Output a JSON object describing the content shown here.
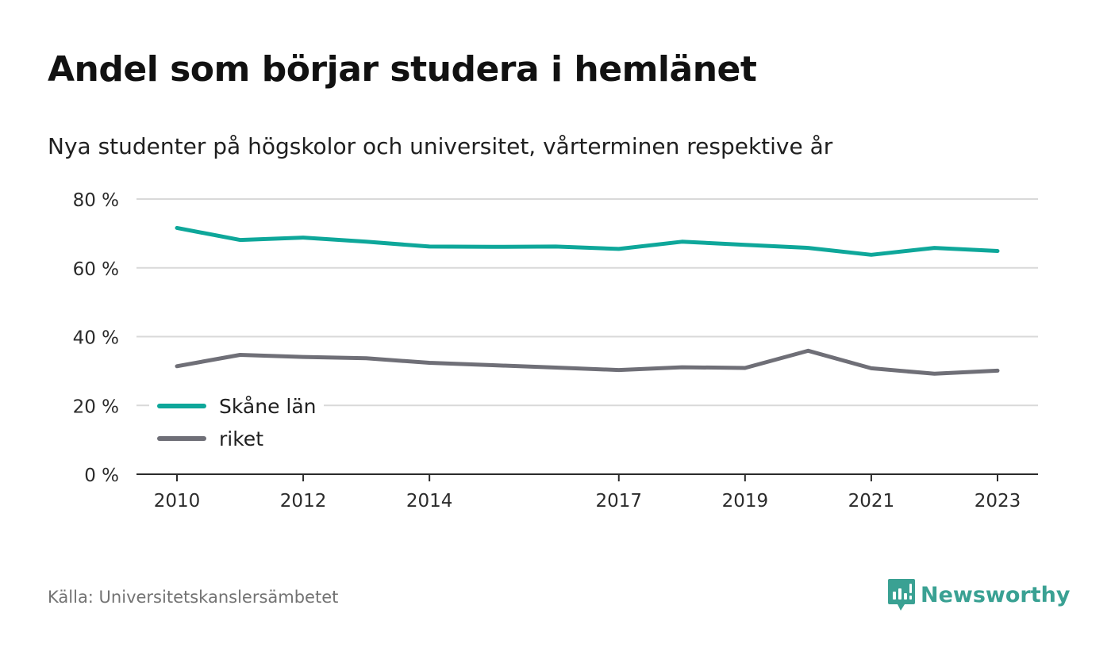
{
  "title": "Andel som börjar studera i hemlänet",
  "subtitle": "Nya studenter på högskolor och universitet, vårterminen respektive år",
  "source": "Källa: Universitetskanslersämbetet",
  "brand": {
    "name": "Newsworthy",
    "icon": "newsworthy-logo-icon",
    "color": "#3aa193"
  },
  "chart_data": {
    "type": "line",
    "title": "Andel som börjar studera i hemlänet",
    "subtitle": "Nya studenter på högskolor och universitet, vårterminen respektive år",
    "x": [
      2010,
      2011,
      2012,
      2013,
      2014,
      2015,
      2016,
      2017,
      2018,
      2019,
      2020,
      2021,
      2022,
      2023
    ],
    "x_tick_labels": [
      "2010",
      "2012",
      "2014",
      "2017",
      "2019",
      "2021",
      "2023"
    ],
    "y_ticks": [
      0,
      20,
      40,
      60,
      80
    ],
    "y_tick_labels": [
      "0 %",
      "20 %",
      "40 %",
      "60 %",
      "80 %"
    ],
    "ylim": [
      0,
      80
    ],
    "xlim": [
      2010,
      2023
    ],
    "grid": true,
    "legend_position": "bottom-left",
    "series": [
      {
        "name": "Skåne län",
        "color": "#0ea79a",
        "values": [
          71.6,
          68.1,
          68.8,
          67.6,
          66.2,
          66.1,
          66.2,
          65.5,
          67.6,
          66.7,
          65.8,
          63.8,
          65.8,
          64.9
        ]
      },
      {
        "name": "riket",
        "color": "#6f6f77",
        "values": [
          31.4,
          34.7,
          34.1,
          33.7,
          32.4,
          31.7,
          31.0,
          30.3,
          31.1,
          30.9,
          35.9,
          30.8,
          29.2,
          30.1
        ]
      }
    ]
  }
}
